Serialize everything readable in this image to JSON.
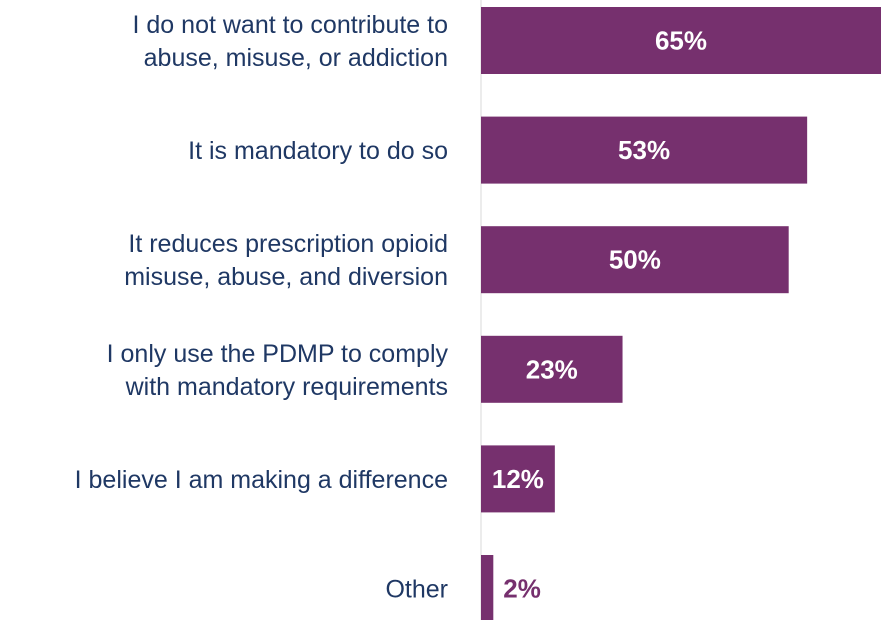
{
  "chart_data": {
    "type": "bar",
    "orientation": "horizontal",
    "categories": [
      [
        "I do not want to contribute to",
        "abuse, misuse, or addiction"
      ],
      [
        "It is mandatory to do so"
      ],
      [
        "It reduces prescription opioid",
        "misuse, abuse, and diversion"
      ],
      [
        "I only use the PDMP to comply",
        "with mandatory requirements"
      ],
      [
        "I believe I am making a difference"
      ],
      [
        "Other"
      ]
    ],
    "values": [
      65,
      53,
      50,
      23,
      12,
      2
    ],
    "value_labels": [
      "65%",
      "53%",
      "50%",
      "23%",
      "12%",
      "2%"
    ],
    "unit": "%",
    "xlim": [
      0,
      65
    ],
    "grid": false,
    "legend": "none"
  },
  "colors": {
    "bar": "#76306e",
    "label_text": "#1f3864",
    "value_inside": "#ffffff",
    "value_outside": "#76306e",
    "axis_line": "#d9d9d9"
  }
}
